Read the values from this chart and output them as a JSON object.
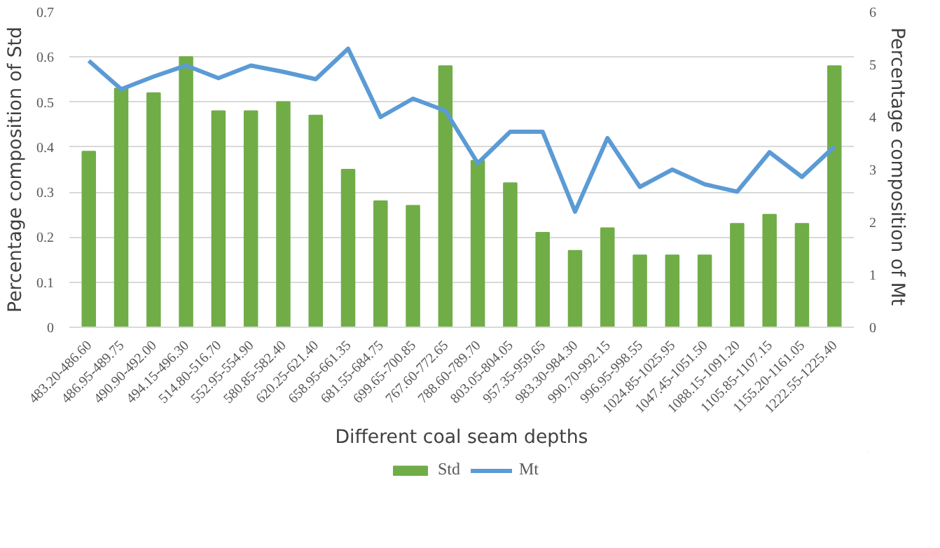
{
  "chart_data": {
    "type": "bar",
    "xlabel": "Different coal seam depths",
    "ylabel": "Percentage composition of Std",
    "y2label": "Percentage composition of  Mt",
    "categories": [
      "483.20-486.60",
      "486.95-489.75",
      "490.90-492.00",
      "494.15-496.30",
      "514.80-516.70",
      "552.95-554.90",
      "580.85-582.40",
      "620.25-621.40",
      "658.95-661.35",
      "681.55-684.75",
      "699.65-700.85",
      "767.60-772.65",
      "788.60-789.70",
      "803.05-804.05",
      "957.35-959.65",
      "983.30-984.30",
      "990.70-992.15",
      "996.95-998.55",
      "1024.85-1025.95",
      "1047.45-1051.50",
      "1088.15-1091.20",
      "1105.85-1107.15",
      "1155.20-1161.05",
      "1222.55-1225.40"
    ],
    "series": [
      {
        "name": "Std",
        "color": "#70ad47",
        "values": [
          0.39,
          0.53,
          0.52,
          0.6,
          0.48,
          0.48,
          0.5,
          0.47,
          0.35,
          0.28,
          0.27,
          0.58,
          0.37,
          0.32,
          0.21,
          0.17,
          0.22,
          0.16,
          0.16,
          0.16,
          0.23,
          0.25,
          0.23,
          0.58
        ]
      },
      {
        "name": "Mt",
        "type": "line",
        "axis": "y2",
        "color": "#5b9bd5",
        "values": [
          5.07,
          4.53,
          4.77,
          4.98,
          4.74,
          4.98,
          4.86,
          4.72,
          5.3,
          4.0,
          4.35,
          4.12,
          3.12,
          3.72,
          3.72,
          2.2,
          3.6,
          2.67,
          3.0,
          2.72,
          2.58,
          3.33,
          2.86,
          3.44
        ]
      }
    ],
    "ylim": [
      0,
      0.7
    ],
    "yticks": [
      0,
      0.1,
      0.2,
      0.3,
      0.4,
      0.5,
      0.6,
      0.7
    ],
    "y2lim": [
      0,
      6
    ],
    "y2ticks": [
      0,
      1,
      2,
      3,
      4,
      5,
      6
    ],
    "grid": "y",
    "legend": "bottom"
  }
}
